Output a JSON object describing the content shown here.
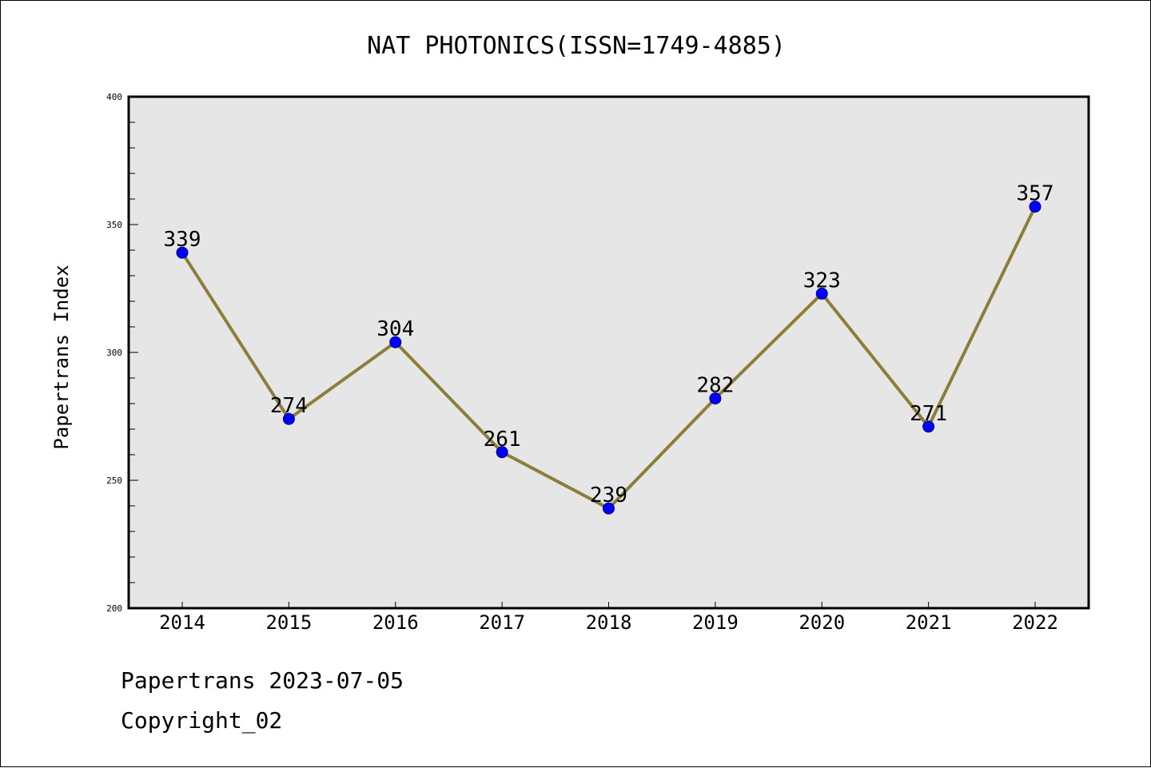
{
  "chart_data": {
    "type": "line",
    "title": "NAT PHOTONICS(ISSN=1749-4885)",
    "xlabel": "",
    "ylabel": "Papertrans Index",
    "categories": [
      "2014",
      "2015",
      "2016",
      "2017",
      "2018",
      "2019",
      "2020",
      "2021",
      "2022"
    ],
    "values": [
      339,
      274,
      304,
      261,
      239,
      282,
      323,
      271,
      357
    ],
    "ylim": [
      200,
      400
    ],
    "yticks": [
      "200",
      "250",
      "300",
      "350",
      "400"
    ],
    "grid": false,
    "line_color": "#8b7d3a",
    "marker_color": "#0000ff",
    "plot_background": "#e6e6e6"
  },
  "footer": {
    "line1": "Papertrans 2023-07-05",
    "line2": "Copyright_02"
  }
}
